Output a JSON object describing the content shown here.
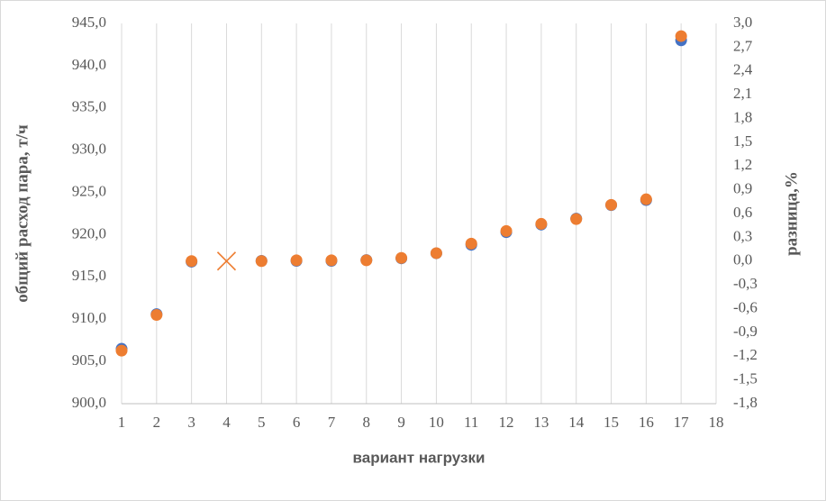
{
  "chart_data": {
    "type": "scatter",
    "x_label": "вариант нагрузки",
    "y_label": "общий расход пара, т/ч",
    "y2_label": "разница,%",
    "xlim": [
      1,
      18
    ],
    "xticks": [
      1,
      2,
      3,
      4,
      5,
      6,
      7,
      8,
      9,
      10,
      11,
      12,
      13,
      14,
      15,
      16,
      17,
      18
    ],
    "ylim": [
      900,
      945
    ],
    "yticks": [
      {
        "value": 900,
        "label": "900,0"
      },
      {
        "value": 905,
        "label": "905,0"
      },
      {
        "value": 910,
        "label": "910,0"
      },
      {
        "value": 915,
        "label": "915,0"
      },
      {
        "value": 920,
        "label": "920,0"
      },
      {
        "value": 925,
        "label": "925,0"
      },
      {
        "value": 930,
        "label": "930,0"
      },
      {
        "value": 935,
        "label": "935,0"
      },
      {
        "value": 940,
        "label": "940,0"
      },
      {
        "value": 945,
        "label": "945,0"
      }
    ],
    "y2lim": [
      -1.8,
      3.0
    ],
    "y2ticks": [
      {
        "value": -1.8,
        "label": "-1,8"
      },
      {
        "value": -1.5,
        "label": "-1,5"
      },
      {
        "value": -1.2,
        "label": "-1,2"
      },
      {
        "value": -0.9,
        "label": "-0,9"
      },
      {
        "value": -0.6,
        "label": "-0,6"
      },
      {
        "value": -0.3,
        "label": "-0,3"
      },
      {
        "value": 0,
        "label": "0,0"
      },
      {
        "value": 0.3,
        "label": "0,3"
      },
      {
        "value": 0.6,
        "label": "0,6"
      },
      {
        "value": 0.9,
        "label": "0,9"
      },
      {
        "value": 1.2,
        "label": "1,2"
      },
      {
        "value": 1.5,
        "label": "1,5"
      },
      {
        "value": 1.8,
        "label": "1,8"
      },
      {
        "value": 2.1,
        "label": "2,1"
      },
      {
        "value": 2.4,
        "label": "2,4"
      },
      {
        "value": 2.7,
        "label": "2,7"
      },
      {
        "value": 3.0,
        "label": "3,0"
      }
    ],
    "grid": "x",
    "series": [
      {
        "color": "#4472c4",
        "marker": "circle",
        "axis": "y",
        "x": [
          1,
          2,
          3,
          4,
          5,
          6,
          7,
          8,
          9,
          10,
          11,
          12,
          13,
          14,
          15,
          16,
          17
        ],
        "values": [
          906.5,
          910.6,
          916.8,
          null,
          916.9,
          916.9,
          916.9,
          917.0,
          917.2,
          917.8,
          918.8,
          920.3,
          921.2,
          921.9,
          923.5,
          924.1,
          943.0
        ]
      },
      {
        "color": "#ed7d31",
        "marker": "circle",
        "axis": "y2",
        "x": [
          1,
          2,
          3,
          4,
          5,
          6,
          7,
          8,
          9,
          10,
          11,
          12,
          13,
          14,
          15,
          16,
          17
        ],
        "values": [
          -1.13,
          -0.68,
          0.0,
          null,
          0.0,
          0.01,
          0.01,
          0.01,
          0.04,
          0.1,
          0.22,
          0.38,
          0.47,
          0.53,
          0.71,
          0.78,
          2.84
        ]
      },
      {
        "color": "#ed7d31",
        "marker": "x",
        "axis": "y2",
        "x": [
          4
        ],
        "values": [
          0.0
        ]
      }
    ]
  }
}
